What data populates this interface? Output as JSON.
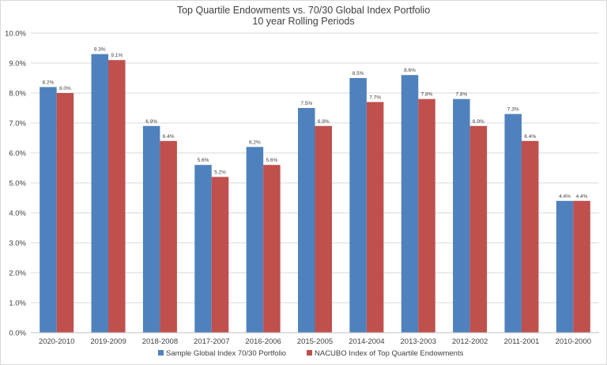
{
  "chart_data": {
    "type": "bar",
    "title": "Top Quartile Endowments vs. 70/30 Global Index Portfolio",
    "subtitle": "10 year Rolling Periods",
    "categories": [
      "2020-2010",
      "2019-2009",
      "2018-2008",
      "2017-2007",
      "2016-2006",
      "2015-2005",
      "2014-2004",
      "2013-2003",
      "2012-2002",
      "2011-2001",
      "2010-2000"
    ],
    "series": [
      {
        "name": "Sample Global Index 70/30 Portfolio",
        "color": "#4f81bd",
        "values": [
          8.2,
          9.3,
          6.9,
          5.6,
          6.2,
          7.5,
          8.5,
          8.6,
          7.8,
          7.3,
          4.4
        ],
        "labels": [
          "8.2%",
          "9.3%",
          "6.9%",
          "5.6%",
          "6.2%",
          "7.5%",
          "8.5%",
          "8.6%",
          "7.8%",
          "7.3%",
          "4.4%"
        ]
      },
      {
        "name": "NACUBO Index of Top Quartile Endowments",
        "color": "#c0504d",
        "values": [
          8.0,
          9.1,
          6.4,
          5.2,
          5.6,
          6.9,
          7.7,
          7.8,
          6.9,
          6.4,
          4.4
        ],
        "labels": [
          "8.0%",
          "9.1%",
          "6.4%",
          "5.2%",
          "5.6%",
          "6.9%",
          "7.7%",
          "7.8%",
          "6.9%",
          "6.4%",
          "4.4%"
        ]
      }
    ],
    "ylim": [
      0,
      10
    ],
    "yticks": [
      "0.0%",
      "1.0%",
      "2.0%",
      "3.0%",
      "4.0%",
      "5.0%",
      "6.0%",
      "7.0%",
      "8.0%",
      "9.0%",
      "10.0%"
    ],
    "grid": true,
    "gridline_color": "#d9d9d9",
    "legend_position": "bottom"
  }
}
